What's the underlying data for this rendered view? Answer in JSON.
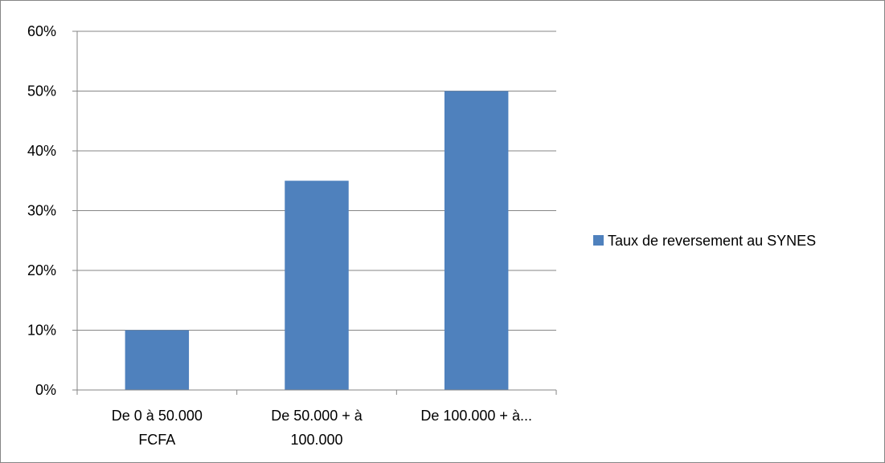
{
  "chart_data": {
    "type": "bar",
    "categories": [
      [
        "De 0 à 50.000",
        "FCFA"
      ],
      [
        "De 50.000 + à",
        "100.000"
      ],
      [
        "De 100.000 + à..."
      ]
    ],
    "series": [
      {
        "name": "Taux de reversement au SYNES",
        "values": [
          10,
          35,
          50
        ],
        "color": "#4f81bd"
      }
    ],
    "y_ticks": [
      "0%",
      "10%",
      "20%",
      "30%",
      "40%",
      "50%",
      "60%"
    ],
    "ylim": [
      0,
      60
    ],
    "y_unit": "%",
    "grid": true,
    "legend_position": "right",
    "colors": {
      "gridline": "#868686",
      "axis": "#868686",
      "frame": "#868686"
    }
  }
}
